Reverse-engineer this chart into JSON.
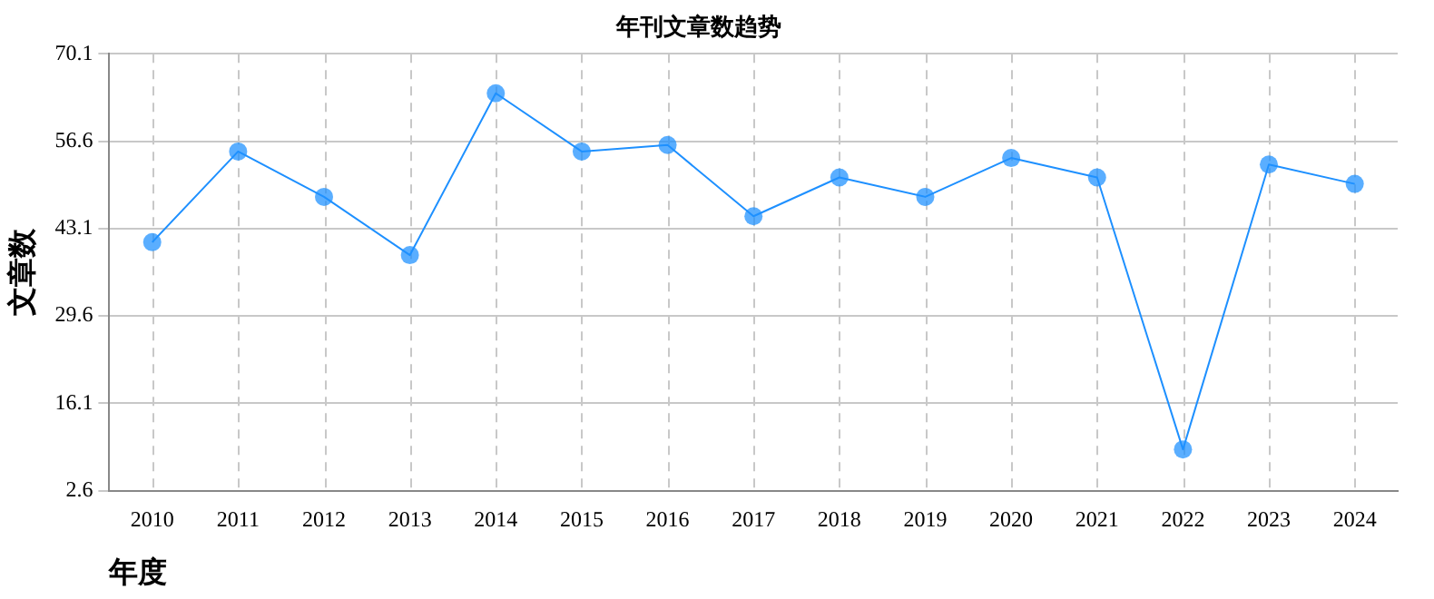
{
  "chart_data": {
    "type": "line",
    "title": "年刊文章数趋势",
    "xlabel": "年度",
    "ylabel": "文章数",
    "categories": [
      "2010",
      "2011",
      "2012",
      "2013",
      "2014",
      "2015",
      "2016",
      "2017",
      "2018",
      "2019",
      "2020",
      "2021",
      "2022",
      "2023",
      "2024"
    ],
    "series": [
      {
        "color": "#1e90ff",
        "values": [
          41,
          55,
          48,
          39,
          64,
          55,
          56,
          45,
          51,
          48,
          54,
          51,
          9,
          53,
          50
        ]
      }
    ],
    "ylim": [
      2.6,
      70.1
    ],
    "yticks": [
      2.6,
      16.1,
      29.6,
      43.1,
      56.6,
      70.1
    ],
    "grid": true,
    "legend": false,
    "marker": "circle",
    "line_style": "solid"
  }
}
